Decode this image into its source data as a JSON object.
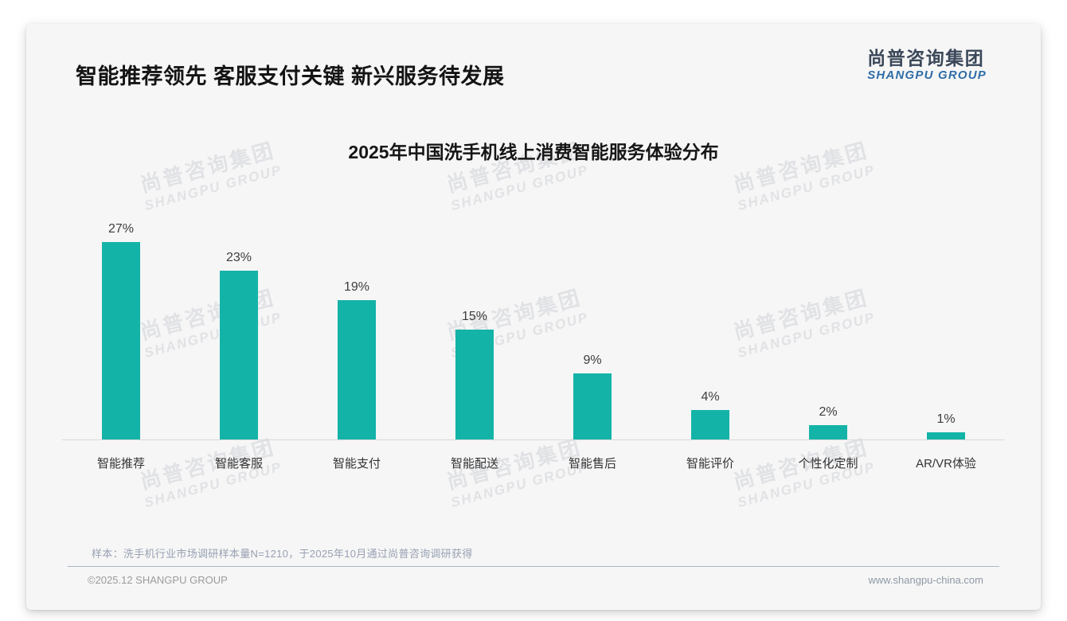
{
  "page": {
    "title": "智能推荐领先 客服支付关键 新兴服务待发展",
    "logo": {
      "cn": "尚普咨询集团",
      "en": "SHANGPU GROUP"
    },
    "watermark": {
      "cn": "尚普咨询集团",
      "en": "SHANGPU GROUP"
    },
    "note": "样本：洗手机行业市场调研样本量N=1210，于2025年10月通过尚普咨询调研获得",
    "footer": {
      "left": "©2025.12 SHANGPU GROUP",
      "right": "www.shangpu-china.com"
    }
  },
  "colors": {
    "bar": "#14b3a8",
    "card_background": "#f6f6f6",
    "logo_cn": "#3b4859",
    "logo_en": "#2f6da8",
    "divider": "#a9b6c6",
    "watermark": "#e1e2e5"
  },
  "chart_data": {
    "type": "bar",
    "title": "2025年中国洗手机线上消费智能服务体验分布",
    "categories": [
      "智能推荐",
      "智能客服",
      "智能支付",
      "智能配送",
      "智能售后",
      "智能评价",
      "个性化定制",
      "AR/VR体验"
    ],
    "values": [
      27,
      23,
      19,
      15,
      9,
      4,
      2,
      1
    ],
    "value_labels": [
      "27%",
      "23%",
      "19%",
      "15%",
      "9%",
      "4%",
      "2%",
      "1%"
    ],
    "unit": "%",
    "xlabel": "",
    "ylabel": "",
    "ylim": [
      0,
      30
    ],
    "grid": false,
    "legend_position": "none",
    "bar_color": "#14b3a8"
  }
}
